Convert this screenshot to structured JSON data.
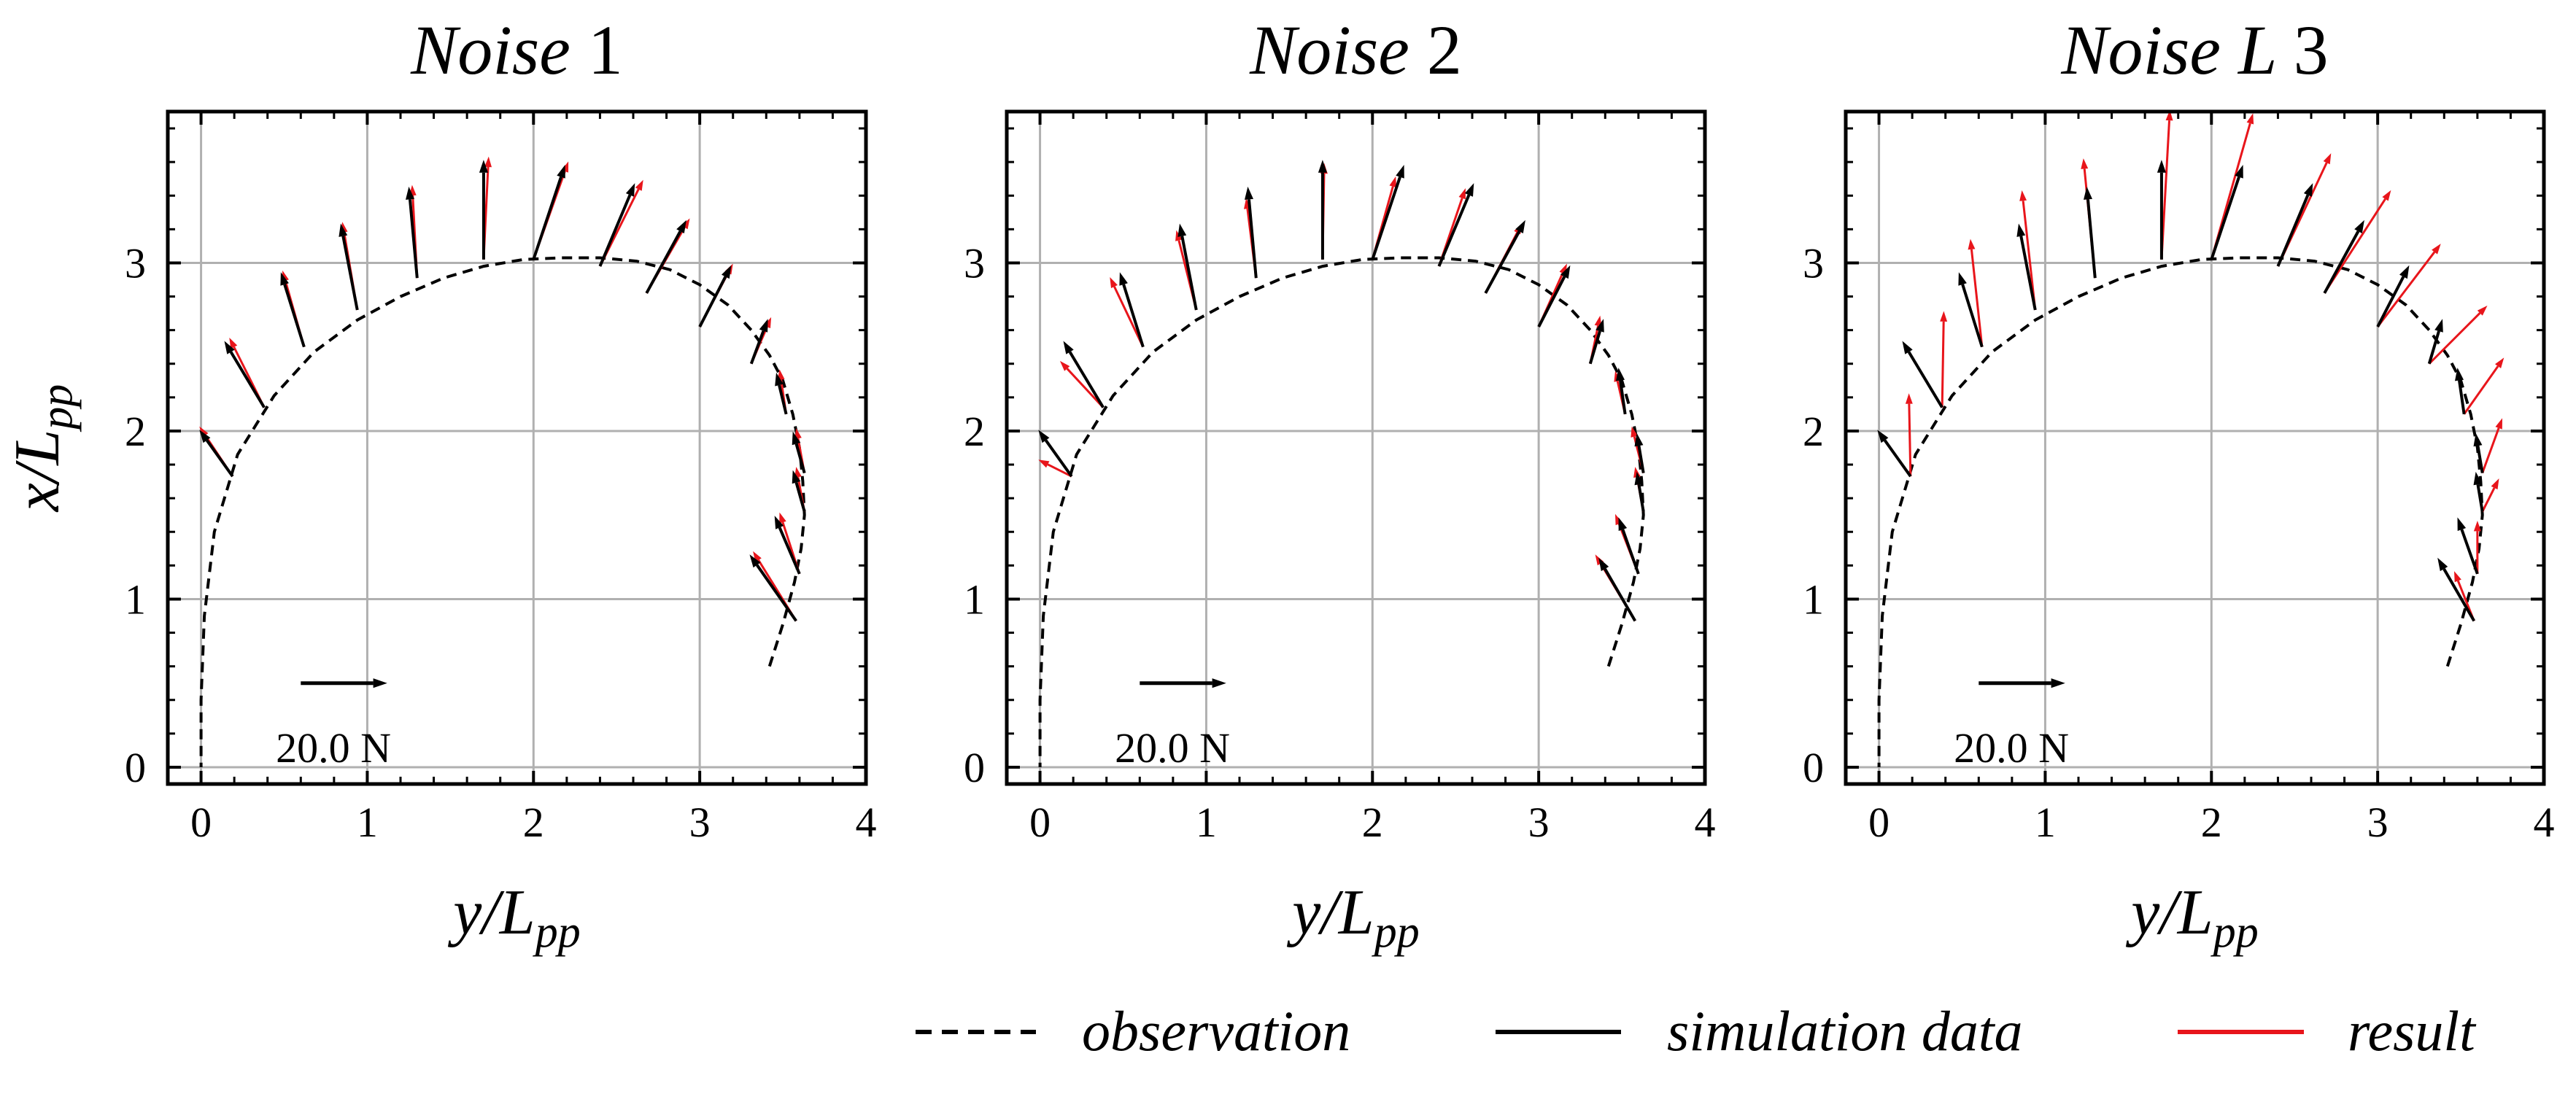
{
  "chart_data": [
    {
      "type": "quiver",
      "title": "Noise 1",
      "title_parts": [
        "Noise",
        "1"
      ],
      "xlabel": "y/L_pp",
      "ylabel": "x/L_pp",
      "xlim": [
        -0.2,
        4.0
      ],
      "ylim": [
        -0.1,
        3.9
      ],
      "xticks": [
        0,
        1,
        2,
        3,
        4
      ],
      "yticks": [
        0,
        1,
        2,
        3
      ],
      "grid": true,
      "scale_arrow_label": "20.0 N",
      "observation": {
        "name": "observation",
        "y": [
          3.42,
          3.5,
          3.57,
          3.61,
          3.63,
          3.62,
          3.6,
          3.56,
          3.5,
          3.42,
          3.31,
          3.17,
          3.0,
          2.82,
          2.62,
          2.4,
          2.17,
          1.94,
          1.7,
          1.46,
          1.2,
          0.94,
          0.68,
          0.44,
          0.22,
          0.08,
          0.02,
          0.0,
          0.0
        ],
        "x": [
          0.6,
          0.85,
          1.1,
          1.3,
          1.5,
          1.7,
          1.9,
          2.1,
          2.3,
          2.45,
          2.6,
          2.75,
          2.87,
          2.96,
          3.01,
          3.03,
          3.03,
          3.02,
          2.98,
          2.91,
          2.8,
          2.66,
          2.47,
          2.21,
          1.86,
          1.4,
          0.9,
          0.4,
          0.0
        ]
      },
      "vectors": [
        {
          "y": 3.58,
          "x": 0.87,
          "sim_dy": -0.28,
          "sim_dx": 0.4,
          "res_dy": -0.26,
          "res_dx": 0.42
        },
        {
          "y": 3.6,
          "x": 1.15,
          "sim_dy": -0.15,
          "sim_dx": 0.35,
          "res_dy": -0.12,
          "res_dx": 0.37
        },
        {
          "y": 3.63,
          "x": 1.52,
          "sim_dy": -0.07,
          "sim_dx": 0.25,
          "res_dy": -0.05,
          "res_dx": 0.27
        },
        {
          "y": 3.63,
          "x": 1.75,
          "sim_dy": -0.07,
          "sim_dx": 0.25,
          "res_dy": -0.05,
          "res_dx": 0.27
        },
        {
          "y": 3.52,
          "x": 2.1,
          "sim_dy": -0.06,
          "sim_dx": 0.25,
          "res_dy": -0.04,
          "res_dx": 0.27
        },
        {
          "y": 3.31,
          "x": 2.4,
          "sim_dy": 0.1,
          "sim_dx": 0.27,
          "res_dy": 0.12,
          "res_dx": 0.28
        },
        {
          "y": 3.0,
          "x": 2.62,
          "sim_dy": 0.19,
          "sim_dx": 0.37,
          "res_dy": 0.2,
          "res_dx": 0.38
        },
        {
          "y": 2.68,
          "x": 2.82,
          "sim_dy": 0.24,
          "sim_dx": 0.44,
          "res_dy": 0.26,
          "res_dx": 0.45
        },
        {
          "y": 2.4,
          "x": 2.98,
          "sim_dy": 0.21,
          "sim_dx": 0.5,
          "res_dy": 0.26,
          "res_dx": 0.52
        },
        {
          "y": 2.0,
          "x": 3.02,
          "sim_dy": 0.19,
          "sim_dx": 0.57,
          "res_dy": 0.21,
          "res_dx": 0.59
        },
        {
          "y": 1.7,
          "x": 3.02,
          "sim_dy": 0.0,
          "sim_dx": 0.6,
          "res_dy": 0.03,
          "res_dx": 0.62
        },
        {
          "y": 1.3,
          "x": 2.91,
          "sim_dy": -0.05,
          "sim_dx": 0.55,
          "res_dy": -0.03,
          "res_dx": 0.56
        },
        {
          "y": 0.94,
          "x": 2.72,
          "sim_dy": -0.1,
          "sim_dx": 0.52,
          "res_dy": -0.09,
          "res_dx": 0.53
        },
        {
          "y": 0.62,
          "x": 2.5,
          "sim_dy": -0.14,
          "sim_dx": 0.45,
          "res_dy": -0.13,
          "res_dx": 0.46
        },
        {
          "y": 0.38,
          "x": 2.14,
          "sim_dy": -0.24,
          "sim_dx": 0.4,
          "res_dy": -0.21,
          "res_dx": 0.42
        },
        {
          "y": 0.19,
          "x": 1.73,
          "sim_dy": -0.2,
          "sim_dx": 0.28,
          "res_dy": -0.2,
          "res_dx": 0.3
        }
      ]
    },
    {
      "type": "quiver",
      "title": "Noise 2",
      "title_parts": [
        "Noise",
        "2"
      ],
      "xlabel": "y/L_pp",
      "ylabel": "",
      "xlim": [
        -0.2,
        4.0
      ],
      "ylim": [
        -0.1,
        3.9
      ],
      "xticks": [
        0,
        1,
        2,
        3,
        4
      ],
      "yticks": [
        0,
        1,
        2,
        3
      ],
      "grid": true,
      "scale_arrow_label": "20.0 N",
      "observation": {
        "name": "observation",
        "y": [
          3.42,
          3.5,
          3.57,
          3.61,
          3.63,
          3.62,
          3.6,
          3.56,
          3.5,
          3.42,
          3.31,
          3.17,
          3.0,
          2.82,
          2.62,
          2.4,
          2.17,
          1.94,
          1.7,
          1.46,
          1.2,
          0.94,
          0.68,
          0.44,
          0.22,
          0.08,
          0.02,
          0.0,
          0.0
        ],
        "x": [
          0.6,
          0.85,
          1.1,
          1.3,
          1.5,
          1.7,
          1.9,
          2.1,
          2.3,
          2.45,
          2.6,
          2.75,
          2.87,
          2.96,
          3.01,
          3.03,
          3.03,
          3.02,
          2.98,
          2.91,
          2.8,
          2.66,
          2.47,
          2.21,
          1.86,
          1.4,
          0.9,
          0.4,
          0.0
        ]
      },
      "vectors": [
        {
          "y": 3.58,
          "x": 0.87,
          "sim_dy": -0.22,
          "sim_dx": 0.38,
          "res_dy": -0.24,
          "res_dx": 0.4
        },
        {
          "y": 3.6,
          "x": 1.15,
          "sim_dy": -0.12,
          "sim_dx": 0.34,
          "res_dy": -0.14,
          "res_dx": 0.36
        },
        {
          "y": 3.63,
          "x": 1.52,
          "sim_dy": -0.04,
          "sim_dx": 0.24,
          "res_dy": -0.05,
          "res_dx": 0.27
        },
        {
          "y": 3.63,
          "x": 1.75,
          "sim_dy": -0.04,
          "sim_dx": 0.24,
          "res_dy": -0.07,
          "res_dx": 0.28
        },
        {
          "y": 3.52,
          "x": 2.1,
          "sim_dy": -0.04,
          "sim_dx": 0.28,
          "res_dy": -0.06,
          "res_dx": 0.26
        },
        {
          "y": 3.31,
          "x": 2.4,
          "sim_dy": 0.08,
          "sim_dx": 0.27,
          "res_dy": 0.06,
          "res_dx": 0.29
        },
        {
          "y": 3.0,
          "x": 2.62,
          "sim_dy": 0.19,
          "sim_dx": 0.37,
          "res_dy": 0.17,
          "res_dx": 0.38
        },
        {
          "y": 2.68,
          "x": 2.82,
          "sim_dy": 0.24,
          "sim_dx": 0.44,
          "res_dy": 0.22,
          "res_dx": 0.42
        },
        {
          "y": 2.4,
          "x": 2.98,
          "sim_dy": 0.21,
          "sim_dx": 0.5,
          "res_dy": 0.16,
          "res_dx": 0.47
        },
        {
          "y": 2.0,
          "x": 3.02,
          "sim_dy": 0.19,
          "sim_dx": 0.57,
          "res_dy": 0.14,
          "res_dx": 0.5
        },
        {
          "y": 1.7,
          "x": 3.02,
          "sim_dy": 0.0,
          "sim_dx": 0.6,
          "res_dy": 0.01,
          "res_dx": 0.58
        },
        {
          "y": 1.3,
          "x": 2.91,
          "sim_dy": -0.05,
          "sim_dx": 0.55,
          "res_dy": -0.06,
          "res_dx": 0.48
        },
        {
          "y": 0.94,
          "x": 2.72,
          "sim_dy": -0.1,
          "sim_dx": 0.52,
          "res_dy": -0.12,
          "res_dx": 0.48
        },
        {
          "y": 0.62,
          "x": 2.5,
          "sim_dy": -0.14,
          "sim_dx": 0.45,
          "res_dy": -0.2,
          "res_dx": 0.42
        },
        {
          "y": 0.38,
          "x": 2.14,
          "sim_dy": -0.24,
          "sim_dx": 0.4,
          "res_dy": -0.26,
          "res_dx": 0.28
        },
        {
          "y": 0.19,
          "x": 1.73,
          "sim_dy": -0.2,
          "sim_dx": 0.28,
          "res_dy": -0.2,
          "res_dx": 0.1
        }
      ]
    },
    {
      "type": "quiver",
      "title": "Noise L3",
      "title_parts": [
        "Noise L",
        "3"
      ],
      "xlabel": "y/L_pp",
      "ylabel": "",
      "xlim": [
        -0.2,
        4.0
      ],
      "ylim": [
        -0.1,
        3.9
      ],
      "xticks": [
        0,
        1,
        2,
        3,
        4
      ],
      "yticks": [
        0,
        1,
        2,
        3
      ],
      "grid": true,
      "scale_arrow_label": "20.0 N",
      "observation": {
        "name": "observation",
        "y": [
          3.42,
          3.5,
          3.57,
          3.61,
          3.63,
          3.62,
          3.6,
          3.56,
          3.5,
          3.42,
          3.31,
          3.17,
          3.0,
          2.82,
          2.62,
          2.4,
          2.17,
          1.94,
          1.7,
          1.46,
          1.2,
          0.94,
          0.68,
          0.44,
          0.22,
          0.08,
          0.02,
          0.0,
          0.0
        ],
        "x": [
          0.6,
          0.85,
          1.1,
          1.3,
          1.5,
          1.7,
          1.9,
          2.1,
          2.3,
          2.45,
          2.6,
          2.75,
          2.87,
          2.96,
          3.01,
          3.03,
          3.03,
          3.02,
          2.98,
          2.91,
          2.8,
          2.66,
          2.47,
          2.21,
          1.86,
          1.4,
          0.9,
          0.4,
          0.0
        ]
      },
      "vectors": [
        {
          "y": 3.58,
          "x": 0.87,
          "sim_dy": -0.22,
          "sim_dx": 0.38,
          "res_dy": -0.12,
          "res_dx": 0.3
        },
        {
          "y": 3.6,
          "x": 1.15,
          "sim_dy": -0.12,
          "sim_dx": 0.34,
          "res_dy": 0.0,
          "res_dx": 0.32
        },
        {
          "y": 3.63,
          "x": 1.52,
          "sim_dy": -0.04,
          "sim_dx": 0.24,
          "res_dy": 0.1,
          "res_dx": 0.2
        },
        {
          "y": 3.63,
          "x": 1.75,
          "sim_dy": -0.04,
          "sim_dx": 0.24,
          "res_dy": 0.12,
          "res_dx": 0.33
        },
        {
          "y": 3.52,
          "x": 2.1,
          "sim_dy": -0.04,
          "sim_dx": 0.28,
          "res_dy": 0.24,
          "res_dx": 0.34
        },
        {
          "y": 3.31,
          "x": 2.4,
          "sim_dy": 0.08,
          "sim_dx": 0.27,
          "res_dy": 0.35,
          "res_dx": 0.35
        },
        {
          "y": 3.0,
          "x": 2.62,
          "sim_dy": 0.19,
          "sim_dx": 0.37,
          "res_dy": 0.38,
          "res_dx": 0.5
        },
        {
          "y": 2.68,
          "x": 2.82,
          "sim_dy": 0.24,
          "sim_dx": 0.44,
          "res_dy": 0.4,
          "res_dx": 0.62
        },
        {
          "y": 2.4,
          "x": 2.98,
          "sim_dy": 0.21,
          "sim_dx": 0.5,
          "res_dy": 0.32,
          "res_dx": 0.68
        },
        {
          "y": 2.0,
          "x": 3.02,
          "sim_dy": 0.19,
          "sim_dx": 0.57,
          "res_dy": 0.25,
          "res_dx": 0.88
        },
        {
          "y": 1.7,
          "x": 3.02,
          "sim_dy": 0.0,
          "sim_dx": 0.6,
          "res_dy": 0.05,
          "res_dx": 0.9
        },
        {
          "y": 1.3,
          "x": 2.91,
          "sim_dy": -0.05,
          "sim_dx": 0.55,
          "res_dy": -0.07,
          "res_dx": 0.72
        },
        {
          "y": 0.94,
          "x": 2.72,
          "sim_dy": -0.1,
          "sim_dx": 0.52,
          "res_dy": -0.08,
          "res_dx": 0.72
        },
        {
          "y": 0.62,
          "x": 2.5,
          "sim_dy": -0.14,
          "sim_dx": 0.45,
          "res_dy": -0.07,
          "res_dx": 0.65
        },
        {
          "y": 0.38,
          "x": 2.14,
          "sim_dy": -0.24,
          "sim_dx": 0.4,
          "res_dy": 0.01,
          "res_dx": 0.58
        },
        {
          "y": 0.19,
          "x": 1.73,
          "sim_dy": -0.2,
          "sim_dx": 0.28,
          "res_dy": -0.01,
          "res_dx": 0.5
        }
      ]
    }
  ],
  "legend": {
    "position": "bottom-right",
    "items": [
      {
        "label": "observation",
        "style": "dashed",
        "color": "#000000"
      },
      {
        "label": "simulation data",
        "style": "solid",
        "color": "#000000"
      },
      {
        "label": "result",
        "style": "solid",
        "color": "#e8151b"
      }
    ]
  },
  "colors": {
    "observation": "#000000",
    "simulation": "#000000",
    "result": "#e8151b",
    "grid": "#b0b0b0",
    "axes": "#000000"
  }
}
